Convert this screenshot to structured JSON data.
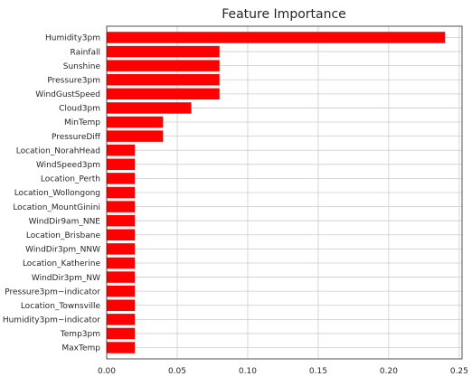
{
  "chart_data": {
    "type": "bar",
    "orientation": "horizontal",
    "title": "Feature Importance",
    "xlabel": "",
    "ylabel": "",
    "bar_color": "#ff0000",
    "grid": true,
    "xlim": [
      0,
      0.252
    ],
    "x_ticks": [
      0.0,
      0.05,
      0.1,
      0.15,
      0.2,
      0.25
    ],
    "x_tick_labels": [
      "0.00",
      "0.05",
      "0.10",
      "0.15",
      "0.20",
      "0.25"
    ],
    "categories": [
      "Humidity3pm",
      "Rainfall",
      "Sunshine",
      "Pressure3pm",
      "WindGustSpeed",
      "Cloud3pm",
      "MinTemp",
      "PressureDiff",
      "Location_NorahHead",
      "WindSpeed3pm",
      "Location_Perth",
      "Location_Wollongong",
      "Location_MountGinini",
      "WindDir9am_NNE",
      "Location_Brisbane",
      "WindDir3pm_NNW",
      "Location_Katherine",
      "WindDir3pm_NW",
      "Pressure3pm~indicator",
      "Location_Townsville",
      "Humidity3pm~indicator",
      "Temp3pm",
      "MaxTemp"
    ],
    "values": [
      0.24,
      0.08,
      0.08,
      0.08,
      0.08,
      0.06,
      0.04,
      0.04,
      0.02,
      0.02,
      0.02,
      0.02,
      0.02,
      0.02,
      0.02,
      0.02,
      0.02,
      0.02,
      0.02,
      0.02,
      0.02,
      0.02,
      0.02
    ]
  }
}
